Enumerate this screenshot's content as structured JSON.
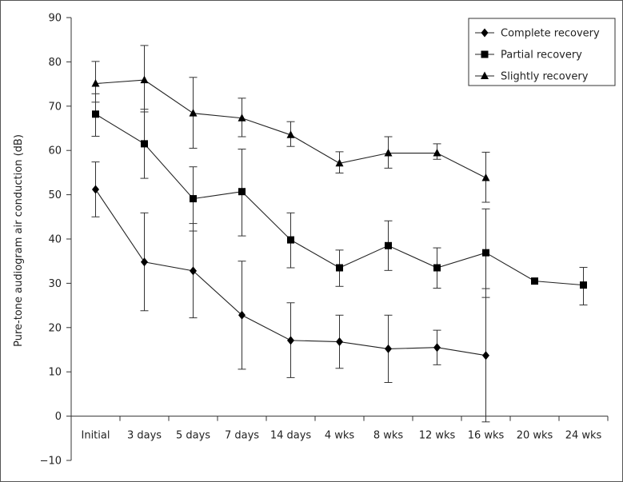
{
  "chart_data": {
    "type": "line",
    "title": "",
    "xlabel": "",
    "ylabel": "Pure-tone audiogram air conduction (dB)",
    "ylim": [
      -10,
      90
    ],
    "yticks": [
      -10,
      0,
      10,
      20,
      30,
      40,
      50,
      60,
      70,
      80,
      90
    ],
    "categories": [
      "Initial",
      "3 days",
      "5 days",
      "7 days",
      "14 days",
      "4 wks",
      "8 wks",
      "12 wks",
      "16 wks",
      "20 wks",
      "24 wks"
    ],
    "legend_position": "top-right",
    "grid": false,
    "series": [
      {
        "name": "Complete recovery",
        "marker": "diamond",
        "values": [
          51.2,
          34.8,
          32.8,
          22.8,
          17.1,
          16.8,
          15.2,
          15.5,
          13.7,
          null,
          null
        ],
        "error_lower": [
          45.0,
          23.8,
          22.2,
          10.6,
          8.7,
          10.8,
          7.6,
          11.6,
          -1.3,
          null,
          null
        ],
        "error_upper": [
          57.4,
          45.9,
          43.5,
          35.0,
          25.6,
          22.8,
          22.8,
          19.4,
          28.8,
          null,
          null
        ]
      },
      {
        "name": "Partial recovery",
        "marker": "square",
        "values": [
          68.2,
          61.5,
          49.1,
          50.7,
          39.8,
          33.5,
          38.5,
          33.5,
          36.9,
          30.5,
          29.6
        ],
        "error_lower": [
          63.2,
          53.7,
          41.8,
          40.7,
          33.5,
          29.3,
          32.9,
          28.9,
          26.8,
          30.5,
          25.1
        ],
        "error_upper": [
          72.8,
          69.3,
          56.3,
          60.3,
          45.9,
          37.5,
          44.1,
          38.0,
          46.8,
          30.5,
          33.6
        ]
      },
      {
        "name": "Slightly recovery",
        "marker": "triangle",
        "values": [
          75.1,
          75.9,
          68.4,
          67.3,
          63.5,
          57.1,
          59.4,
          59.4,
          53.8,
          null,
          null
        ],
        "error_lower": [
          70.9,
          68.7,
          60.5,
          63.1,
          60.9,
          54.9,
          56.0,
          58.0,
          48.3,
          null,
          null
        ],
        "error_upper": [
          80.1,
          83.7,
          76.5,
          71.8,
          66.5,
          59.7,
          63.1,
          61.5,
          59.6,
          null,
          null
        ]
      }
    ]
  }
}
